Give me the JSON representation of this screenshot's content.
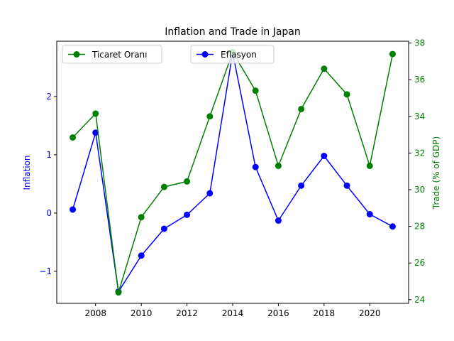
{
  "chart_data": {
    "type": "line",
    "title": "Inflation and Trade in Japan",
    "x": [
      2007,
      2008,
      2009,
      2010,
      2011,
      2012,
      2013,
      2014,
      2015,
      2016,
      2017,
      2018,
      2019,
      2020,
      2021
    ],
    "xticks": [
      "2008",
      "2010",
      "2012",
      "2014",
      "2016",
      "2018",
      "2020"
    ],
    "xlim": [
      2006.3,
      2021.7
    ],
    "y_left": {
      "label": "Inflation",
      "color": "#0000ff",
      "lim": [
        -1.55,
        2.95
      ],
      "ticks": [
        -1,
        0,
        1,
        2
      ],
      "tick_labels": [
        "−1",
        "0",
        "1",
        "2"
      ]
    },
    "y_right": {
      "label": "Trade (% of GDP)",
      "color": "#008000",
      "lim": [
        23.8,
        38.1
      ],
      "ticks": [
        24,
        26,
        28,
        30,
        32,
        34,
        36,
        38
      ],
      "tick_labels": [
        "24",
        "26",
        "28",
        "30",
        "32",
        "34",
        "36",
        "38"
      ]
    },
    "series": [
      {
        "name": "Eflasyon",
        "axis": "left",
        "color": "#0000ff",
        "values": [
          0.06,
          1.38,
          -1.35,
          -0.73,
          -0.27,
          -0.03,
          0.34,
          2.75,
          0.79,
          -0.13,
          0.47,
          0.98,
          0.47,
          -0.02,
          -0.23
        ]
      },
      {
        "name": "Ticaret Oranı",
        "axis": "right",
        "color": "#008000",
        "values": [
          32.85,
          34.15,
          24.4,
          28.5,
          30.15,
          30.45,
          34.0,
          37.5,
          35.4,
          31.3,
          34.4,
          36.6,
          35.2,
          31.3,
          37.4
        ]
      }
    ],
    "legends": [
      {
        "series": "Ticaret Oranı",
        "position": "upper-left"
      },
      {
        "series": "Eflasyon",
        "position": "upper-center"
      }
    ],
    "grid": false
  }
}
